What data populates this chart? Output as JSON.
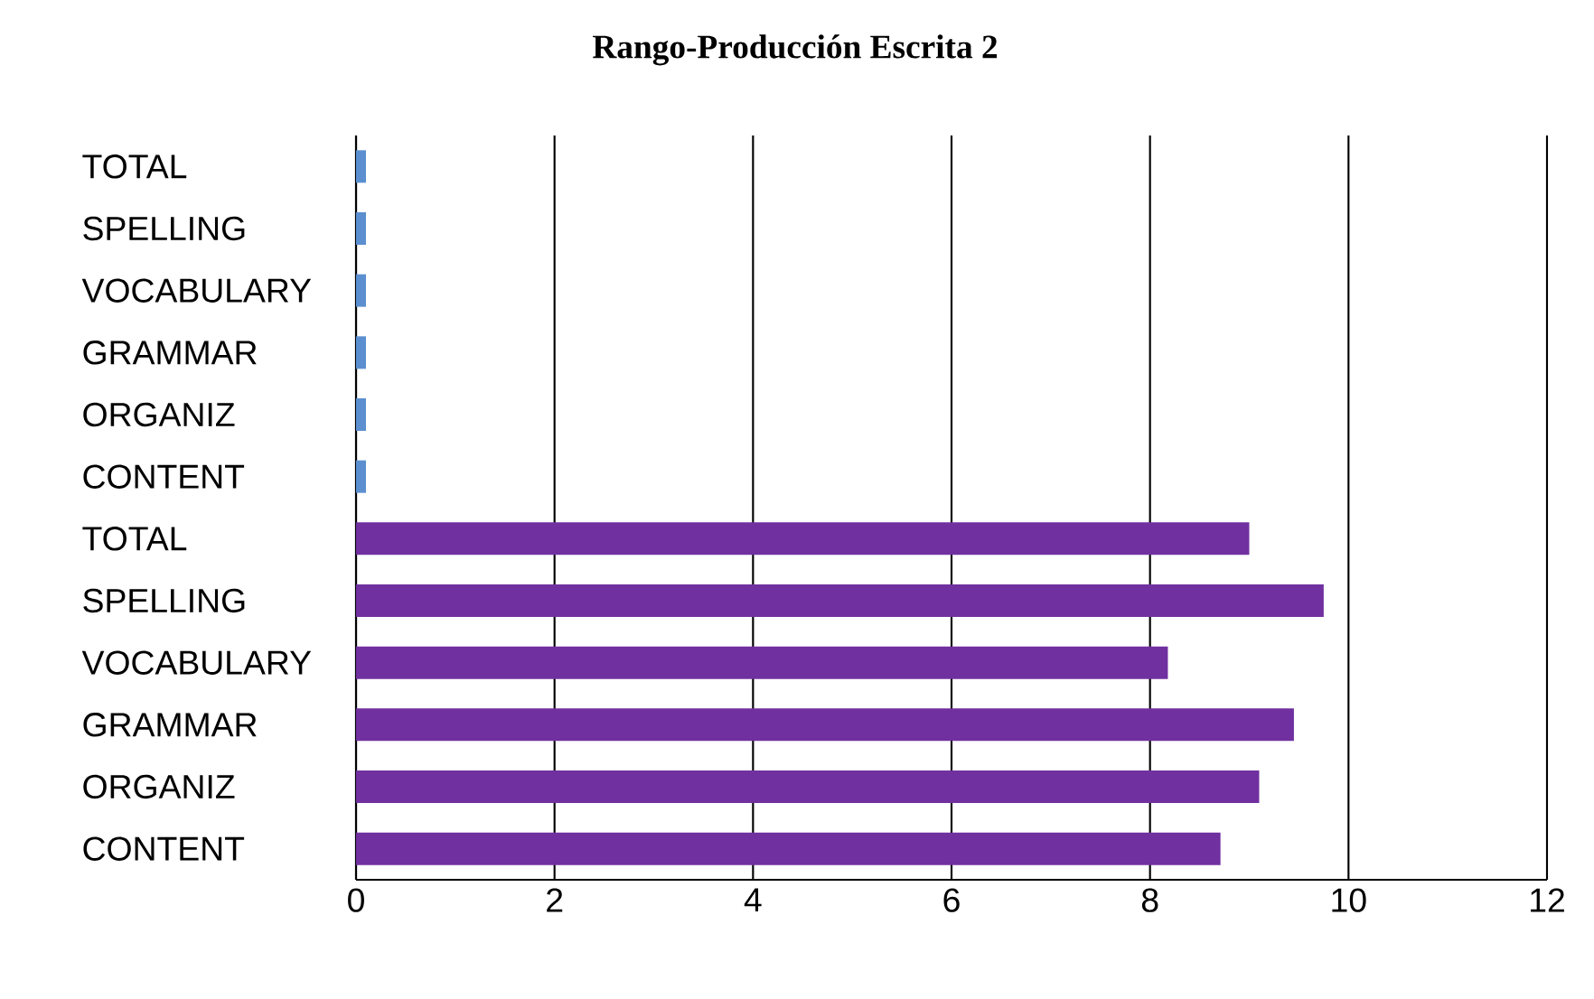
{
  "chart_data": {
    "type": "bar",
    "orientation": "horizontal",
    "title": "Rango-Producción Escrita 2",
    "categories": [
      "TOTAL",
      "SPELLING",
      "VOCABULARY",
      "GRAMMAR",
      "ORGANIZ",
      "CONTENT",
      "TOTAL",
      "SPELLING",
      "VOCABULARY",
      "GRAMMAR",
      "ORGANIZ",
      "CONTENT"
    ],
    "values": [
      0.1,
      0.1,
      0.1,
      0.1,
      0.1,
      0.1,
      9.0,
      9.75,
      8.18,
      9.45,
      9.1,
      8.71
    ],
    "colors": [
      "#5b8fd0",
      "#5b8fd0",
      "#5b8fd0",
      "#5b8fd0",
      "#5b8fd0",
      "#5b8fd0",
      "#7030a0",
      "#7030a0",
      "#7030a0",
      "#7030a0",
      "#7030a0",
      "#7030a0"
    ],
    "xlim": [
      0,
      12
    ],
    "xticks": [
      0,
      2,
      4,
      6,
      8,
      10,
      12
    ],
    "grid": "x"
  }
}
